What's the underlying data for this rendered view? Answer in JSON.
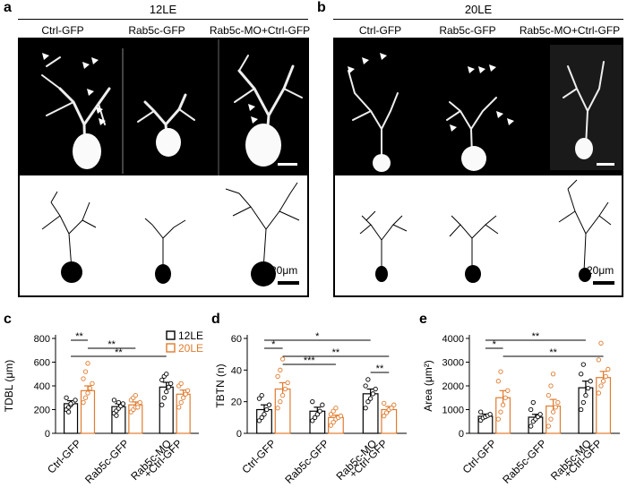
{
  "panels": {
    "a": {
      "letter": "a",
      "title": "12LE",
      "columns": [
        "Ctrl-GFP",
        "Rab5c-GFP",
        "Rab5c-MO+Ctrl-GFP"
      ],
      "scale_text": "20μm"
    },
    "b": {
      "letter": "b",
      "title": "20LE",
      "columns": [
        "Ctrl-GFP",
        "Rab5c-GFP",
        "Rab5c-MO+Ctrl-GFP"
      ],
      "scale_text": "20μm"
    },
    "c": {
      "letter": "c"
    },
    "d": {
      "letter": "d"
    },
    "e": {
      "letter": "e"
    }
  },
  "colors": {
    "12LE": "#000000",
    "20LE": "#e07b2e",
    "image_bg": "#000000",
    "micro_signal": "#f2f2f2"
  },
  "chart_data": [
    {
      "id": "c",
      "type": "bar",
      "ylabel": "TDBL (μm)",
      "ylim": [
        0,
        800
      ],
      "yticks": [
        0,
        200,
        400,
        600,
        800
      ],
      "categories": [
        "Ctrl-GFP",
        "Rab5c-GFP",
        "Rab5c-MO\n+Ctrl-GFP"
      ],
      "series": [
        {
          "name": "12LE",
          "values": [
            250,
            225,
            390
          ],
          "errors": [
            25,
            25,
            40
          ]
        },
        {
          "name": "20LE",
          "values": [
            360,
            240,
            330
          ],
          "errors": [
            40,
            25,
            35
          ]
        }
      ],
      "points": {
        "12LE": [
          [
            200,
            220,
            240,
            260,
            280,
            300,
            180,
            250
          ],
          [
            170,
            190,
            210,
            230,
            250,
            280,
            150,
            260
          ],
          [
            240,
            300,
            350,
            390,
            420,
            450,
            480,
            500
          ]
        ],
        "20LE": [
          [
            260,
            300,
            340,
            380,
            420,
            460,
            520,
            590
          ],
          [
            180,
            200,
            220,
            240,
            260,
            280,
            300,
            320,
            220
          ],
          [
            220,
            260,
            300,
            330,
            360,
            400,
            420
          ]
        ]
      },
      "legend": [
        "12LE",
        "20LE"
      ],
      "legend_position": "top-right",
      "significance": [
        {
          "from": [
            0,
            0
          ],
          "to": [
            0,
            1
          ],
          "label": "**"
        },
        {
          "from": [
            0,
            1
          ],
          "to": [
            1,
            1
          ],
          "label": "**"
        },
        {
          "from": [
            0,
            0
          ],
          "to": [
            2,
            0
          ],
          "label": "**"
        }
      ]
    },
    {
      "id": "d",
      "type": "bar",
      "ylabel": "TBTN (n)",
      "ylim": [
        0,
        60
      ],
      "yticks": [
        0,
        20,
        40,
        60
      ],
      "categories": [
        "Ctrl-GFP",
        "Rab5c-GFP",
        "Rab5c-MO\n+Ctrl-GFP"
      ],
      "series": [
        {
          "name": "12LE",
          "values": [
            15,
            14,
            25
          ],
          "errors": [
            3,
            2.5,
            3
          ]
        },
        {
          "name": "20LE",
          "values": [
            28,
            10,
            15
          ],
          "errors": [
            4,
            1.5,
            2
          ]
        }
      ],
      "points": {
        "12LE": [
          [
            8,
            10,
            12,
            15,
            18,
            22,
            24
          ],
          [
            8,
            10,
            12,
            14,
            18,
            20
          ],
          [
            16,
            20,
            22,
            25,
            28,
            30,
            34
          ]
        ],
        "20LE": [
          [
            16,
            20,
            24,
            28,
            32,
            36,
            40,
            47
          ],
          [
            5,
            7,
            9,
            10,
            11,
            12,
            14,
            16
          ],
          [
            11,
            13,
            15,
            16,
            18,
            19
          ]
        ]
      },
      "significance": [
        {
          "from": [
            0,
            0
          ],
          "to": [
            2,
            0
          ],
          "label": "*"
        },
        {
          "from": [
            0,
            0
          ],
          "to": [
            0,
            1
          ],
          "label": "*"
        },
        {
          "from": [
            0,
            1
          ],
          "to": [
            2,
            1
          ],
          "label": "**"
        },
        {
          "from": [
            0,
            1
          ],
          "to": [
            1,
            1
          ],
          "label": "***"
        },
        {
          "from": [
            2,
            0
          ],
          "to": [
            2,
            1
          ],
          "label": "**"
        }
      ]
    },
    {
      "id": "e",
      "type": "bar",
      "ylabel": "Area (μm²)",
      "ylim": [
        0,
        4000
      ],
      "yticks": [
        0,
        1000,
        2000,
        3000,
        4000
      ],
      "categories": [
        "Ctrl-GFP",
        "Rab5c-GFP",
        "Rab5c-MO\n+Ctrl-GFP"
      ],
      "series": [
        {
          "name": "12LE",
          "values": [
            720,
            680,
            1920
          ],
          "errors": [
            90,
            120,
            280
          ]
        },
        {
          "name": "20LE",
          "values": [
            1500,
            1150,
            2350
          ],
          "errors": [
            300,
            280,
            260
          ]
        }
      ],
      "points": {
        "12LE": [
          [
            550,
            650,
            700,
            750,
            800,
            900
          ],
          [
            300,
            500,
            600,
            700,
            800,
            1000,
            1300
          ],
          [
            1000,
            1300,
            1600,
            1900,
            2200,
            2500,
            2900
          ]
        ],
        "20LE": [
          [
            600,
            900,
            1200,
            1500,
            1800,
            2200,
            2600
          ],
          [
            300,
            600,
            900,
            1100,
            1300,
            1600,
            2000,
            2500
          ],
          [
            1700,
            2000,
            2200,
            2400,
            2700,
            3100,
            3800
          ]
        ]
      },
      "significance": [
        {
          "from": [
            0,
            0
          ],
          "to": [
            2,
            0
          ],
          "label": "**"
        },
        {
          "from": [
            0,
            0
          ],
          "to": [
            0,
            1
          ],
          "label": "*"
        },
        {
          "from": [
            0,
            1
          ],
          "to": [
            2,
            1
          ],
          "label": "**"
        }
      ]
    }
  ]
}
